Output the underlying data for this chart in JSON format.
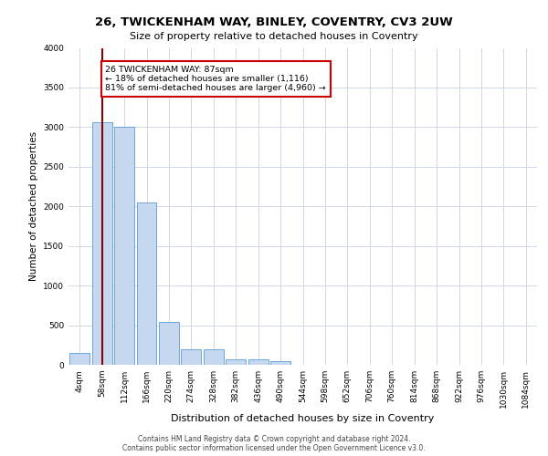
{
  "title1": "26, TWICKENHAM WAY, BINLEY, COVENTRY, CV3 2UW",
  "title2": "Size of property relative to detached houses in Coventry",
  "xlabel": "Distribution of detached houses by size in Coventry",
  "ylabel": "Number of detached properties",
  "bin_labels": [
    "4sqm",
    "58sqm",
    "112sqm",
    "166sqm",
    "220sqm",
    "274sqm",
    "328sqm",
    "382sqm",
    "436sqm",
    "490sqm",
    "544sqm",
    "598sqm",
    "652sqm",
    "706sqm",
    "760sqm",
    "814sqm",
    "868sqm",
    "922sqm",
    "976sqm",
    "1030sqm",
    "1084sqm"
  ],
  "bar_values": [
    150,
    3060,
    3010,
    2050,
    540,
    195,
    195,
    70,
    65,
    45,
    0,
    0,
    0,
    0,
    0,
    0,
    0,
    0,
    0,
    0,
    0
  ],
  "bar_color": "#c5d8f0",
  "bar_edge_color": "#5b9bd5",
  "ylim": [
    0,
    4000
  ],
  "yticks": [
    0,
    500,
    1000,
    1500,
    2000,
    2500,
    3000,
    3500,
    4000
  ],
  "property_bin_index": 1,
  "vline_color": "#8b0000",
  "annotation_text": "26 TWICKENHAM WAY: 87sqm\n← 18% of detached houses are smaller (1,116)\n81% of semi-detached houses are larger (4,960) →",
  "annotation_box_color": "#ffffff",
  "annotation_box_edge": "#cc0000",
  "footer1": "Contains HM Land Registry data © Crown copyright and database right 2024.",
  "footer2": "Contains public sector information licensed under the Open Government Licence v3.0.",
  "bg_color": "#ffffff",
  "grid_color": "#d0d8e8",
  "title1_fontsize": 9.5,
  "title2_fontsize": 8,
  "ylabel_fontsize": 7.5,
  "xlabel_fontsize": 8,
  "tick_fontsize": 6.5,
  "footer_fontsize": 5.5
}
